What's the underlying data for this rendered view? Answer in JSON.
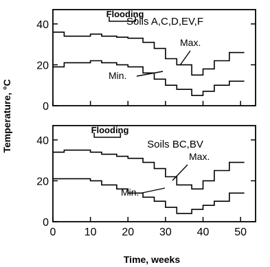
{
  "chart_data": [
    {
      "type": "line",
      "title": "Soils A,C,D,EV,F",
      "flood_label": "Flooding",
      "flood_range": [
        15,
        22
      ],
      "xlim": [
        0,
        54
      ],
      "ylim": [
        0,
        47
      ],
      "yticks": [
        0,
        20,
        40
      ],
      "grid": false,
      "series": [
        {
          "name": "Max.",
          "x": [
            0,
            3,
            3,
            10,
            10,
            13,
            13,
            17,
            17,
            20,
            20,
            24,
            24,
            27,
            27,
            30,
            30,
            33,
            33,
            37,
            37,
            40,
            40,
            43,
            43,
            47,
            47,
            51
          ],
          "y": [
            36,
            36,
            34,
            34,
            35,
            35,
            34,
            34,
            33.5,
            33.5,
            33,
            33,
            31,
            31,
            28,
            28,
            23,
            23,
            20,
            20,
            15,
            15,
            18,
            18,
            22,
            22,
            26,
            26
          ]
        },
        {
          "name": "Min.",
          "x": [
            0,
            3,
            3,
            10,
            10,
            13,
            13,
            17,
            17,
            20,
            20,
            24,
            24,
            27,
            27,
            30,
            30,
            33,
            33,
            37,
            37,
            40,
            40,
            43,
            43,
            47,
            47,
            51
          ],
          "y": [
            19,
            19,
            21,
            21,
            22,
            22,
            21,
            21,
            20,
            20,
            19,
            19,
            16,
            16,
            13,
            13,
            10,
            10,
            8,
            8,
            5,
            5,
            7,
            7,
            10,
            10,
            12,
            12
          ]
        }
      ],
      "annotations": [
        "Max.",
        "Min."
      ]
    },
    {
      "type": "line",
      "title": "Soils BC,BV",
      "flood_label": "Flooding",
      "flood_range": [
        11,
        18
      ],
      "xlim": [
        0,
        54
      ],
      "ylim": [
        0,
        47
      ],
      "yticks": [
        0,
        20,
        40
      ],
      "xticks": [
        0,
        10,
        20,
        30,
        40,
        50
      ],
      "xlabel": "Time, weeks",
      "grid": false,
      "series": [
        {
          "name": "Max.",
          "x": [
            0,
            3,
            3,
            10,
            10,
            13,
            13,
            17,
            17,
            20,
            20,
            24,
            24,
            27,
            27,
            30,
            30,
            33,
            33,
            37,
            37,
            40,
            40,
            43,
            43,
            47,
            47,
            51
          ],
          "y": [
            34,
            34,
            35,
            35,
            34,
            34,
            33,
            33,
            32,
            32,
            31,
            31,
            29,
            29,
            26,
            26,
            22,
            22,
            18,
            18,
            16,
            16,
            20,
            20,
            25,
            25,
            29,
            29
          ]
        },
        {
          "name": "Min.",
          "x": [
            0,
            3,
            3,
            10,
            10,
            13,
            13,
            17,
            17,
            20,
            20,
            24,
            24,
            27,
            27,
            30,
            30,
            33,
            33,
            37,
            37,
            40,
            40,
            43,
            43,
            47,
            47,
            51
          ],
          "y": [
            21,
            21,
            21,
            21,
            20,
            20,
            18,
            18,
            16,
            16,
            14,
            14,
            12,
            12,
            10,
            10,
            7,
            7,
            4,
            4,
            6,
            6,
            8,
            8,
            10,
            10,
            14,
            14
          ]
        }
      ],
      "annotations": [
        "Max.",
        "Min."
      ]
    }
  ],
  "ylabel": "Temperature, °C"
}
